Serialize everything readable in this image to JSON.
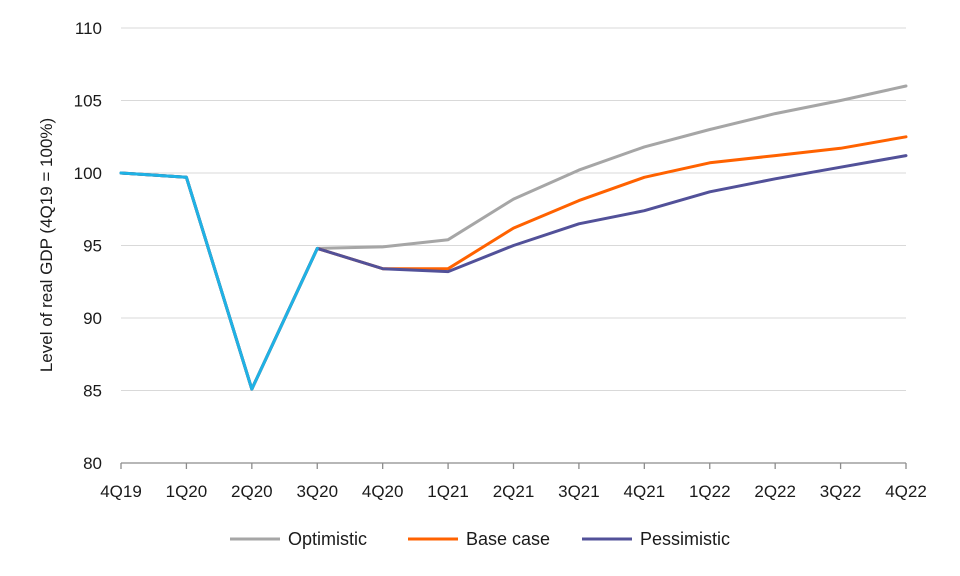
{
  "chart_data": {
    "type": "line",
    "ylabel": "Level of real GDP (4Q19 = 100%)",
    "xlabel": "",
    "ylim": [
      80,
      110
    ],
    "yticks": [
      80,
      85,
      90,
      95,
      100,
      105,
      110
    ],
    "grid": "horizontal",
    "legend_position": "bottom",
    "categories": [
      "4Q19",
      "1Q20",
      "2Q20",
      "3Q20",
      "4Q20",
      "1Q21",
      "2Q21",
      "3Q21",
      "4Q21",
      "1Q22",
      "2Q22",
      "3Q22",
      "4Q22"
    ],
    "history": {
      "color": "#1fb2e5",
      "values": [
        100.0,
        99.7,
        85.1,
        94.8
      ]
    },
    "series": [
      {
        "name": "Optimistic",
        "color": "#a6a6a6",
        "values": [
          100.0,
          99.7,
          85.1,
          94.8,
          94.9,
          95.4,
          98.2,
          100.2,
          101.8,
          103.0,
          104.1,
          105.0,
          106.0
        ]
      },
      {
        "name": "Base case",
        "color": "#ff6200",
        "values": [
          100.0,
          99.7,
          85.1,
          94.8,
          93.4,
          93.4,
          96.2,
          98.1,
          99.7,
          100.7,
          101.2,
          101.7,
          102.5
        ]
      },
      {
        "name": "Pessimistic",
        "color": "#525199",
        "values": [
          100.0,
          99.7,
          85.1,
          94.8,
          93.4,
          93.2,
          95.0,
          96.5,
          97.4,
          98.7,
          99.6,
          100.4,
          101.2
        ]
      }
    ]
  }
}
